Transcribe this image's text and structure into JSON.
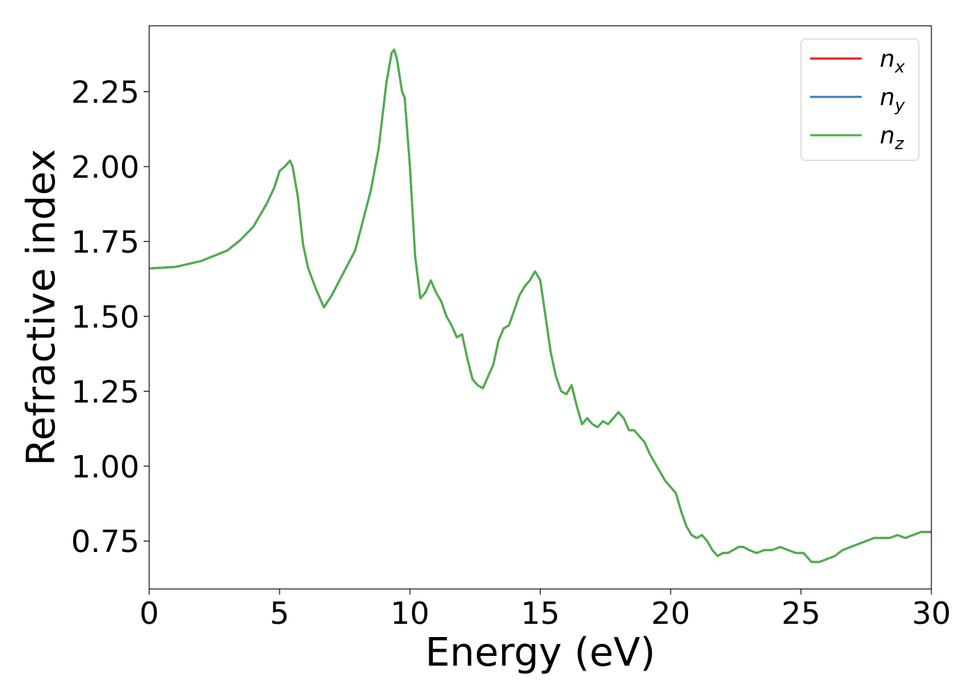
{
  "chart_data": {
    "type": "line",
    "xlabel": "Energy (eV)",
    "ylabel": "Refractive index",
    "xlim": [
      0,
      30
    ],
    "ylim": [
      0.59,
      2.47
    ],
    "xticks": [
      0,
      5,
      10,
      15,
      20,
      25,
      30
    ],
    "yticks": [
      0.75,
      1.0,
      1.25,
      1.5,
      1.75,
      2.0,
      2.25
    ],
    "xtick_labels": [
      "0",
      "5",
      "10",
      "15",
      "20",
      "25",
      "30"
    ],
    "ytick_labels": [
      "0.75",
      "1.00",
      "1.25",
      "1.50",
      "1.75",
      "2.00",
      "2.25"
    ],
    "grid": false,
    "legend_position": "top-right",
    "series": [
      {
        "name": "n_x",
        "label_base": "n",
        "label_sub": "x",
        "color": "#e41a1c",
        "x": [
          0,
          1,
          2,
          3,
          3.5,
          4,
          4.5,
          4.8,
          5.0,
          5.2,
          5.4,
          5.5,
          5.7,
          5.9,
          6.1,
          6.4,
          6.7,
          7.0,
          7.3,
          7.6,
          7.9,
          8.2,
          8.5,
          8.8,
          9.1,
          9.3,
          9.4,
          9.5,
          9.7,
          9.8,
          10.0,
          10.2,
          10.4,
          10.6,
          10.8,
          10.9,
          11.0,
          11.2,
          11.4,
          11.6,
          11.8,
          12.0,
          12.2,
          12.4,
          12.6,
          12.8,
          13.0,
          13.2,
          13.4,
          13.6,
          13.8,
          14.0,
          14.2,
          14.4,
          14.6,
          14.8,
          15.0,
          15.2,
          15.4,
          15.6,
          15.8,
          16.0,
          16.2,
          16.4,
          16.6,
          16.8,
          17.0,
          17.2,
          17.4,
          17.6,
          17.8,
          18.0,
          18.2,
          18.4,
          18.6,
          18.8,
          19.0,
          19.2,
          19.4,
          19.6,
          19.8,
          20.0,
          20.2,
          20.4,
          20.6,
          20.8,
          21.0,
          21.2,
          21.4,
          21.6,
          21.8,
          22.0,
          22.2,
          22.4,
          22.6,
          22.8,
          23.0,
          23.3,
          23.6,
          23.9,
          24.2,
          24.5,
          24.8,
          25.1,
          25.4,
          25.7,
          26.0,
          26.3,
          26.6,
          26.9,
          27.2,
          27.5,
          27.8,
          28.1,
          28.4,
          28.7,
          29.0,
          29.3,
          29.6,
          30.0
        ],
        "values": [
          1.66,
          1.665,
          1.685,
          1.72,
          1.755,
          1.8,
          1.875,
          1.93,
          1.985,
          2.0,
          2.02,
          2.0,
          1.9,
          1.74,
          1.66,
          1.59,
          1.53,
          1.57,
          1.62,
          1.67,
          1.72,
          1.82,
          1.92,
          2.06,
          2.28,
          2.38,
          2.39,
          2.36,
          2.25,
          2.23,
          2.0,
          1.7,
          1.56,
          1.58,
          1.62,
          1.6,
          1.58,
          1.55,
          1.5,
          1.47,
          1.43,
          1.44,
          1.36,
          1.29,
          1.27,
          1.26,
          1.3,
          1.34,
          1.42,
          1.46,
          1.47,
          1.52,
          1.57,
          1.6,
          1.62,
          1.65,
          1.62,
          1.5,
          1.38,
          1.3,
          1.25,
          1.24,
          1.27,
          1.2,
          1.14,
          1.16,
          1.14,
          1.13,
          1.15,
          1.14,
          1.16,
          1.18,
          1.16,
          1.12,
          1.12,
          1.1,
          1.08,
          1.04,
          1.01,
          0.98,
          0.95,
          0.93,
          0.91,
          0.85,
          0.8,
          0.77,
          0.76,
          0.77,
          0.75,
          0.72,
          0.7,
          0.71,
          0.71,
          0.72,
          0.73,
          0.73,
          0.72,
          0.71,
          0.72,
          0.72,
          0.73,
          0.72,
          0.71,
          0.71,
          0.68,
          0.68,
          0.69,
          0.7,
          0.72,
          0.73,
          0.74,
          0.75,
          0.76,
          0.76,
          0.76,
          0.77,
          0.76,
          0.77,
          0.78,
          0.78
        ]
      },
      {
        "name": "n_y",
        "label_base": "n",
        "label_sub": "y",
        "color": "#377eb8",
        "x": [
          0,
          1,
          2,
          3,
          3.5,
          4,
          4.5,
          4.8,
          5.0,
          5.2,
          5.4,
          5.5,
          5.7,
          5.9,
          6.1,
          6.4,
          6.7,
          7.0,
          7.3,
          7.6,
          7.9,
          8.2,
          8.5,
          8.8,
          9.1,
          9.3,
          9.4,
          9.5,
          9.7,
          9.8,
          10.0,
          10.2,
          10.4,
          10.6,
          10.8,
          10.9,
          11.0,
          11.2,
          11.4,
          11.6,
          11.8,
          12.0,
          12.2,
          12.4,
          12.6,
          12.8,
          13.0,
          13.2,
          13.4,
          13.6,
          13.8,
          14.0,
          14.2,
          14.4,
          14.6,
          14.8,
          15.0,
          15.2,
          15.4,
          15.6,
          15.8,
          16.0,
          16.2,
          16.4,
          16.6,
          16.8,
          17.0,
          17.2,
          17.4,
          17.6,
          17.8,
          18.0,
          18.2,
          18.4,
          18.6,
          18.8,
          19.0,
          19.2,
          19.4,
          19.6,
          19.8,
          20.0,
          20.2,
          20.4,
          20.6,
          20.8,
          21.0,
          21.2,
          21.4,
          21.6,
          21.8,
          22.0,
          22.2,
          22.4,
          22.6,
          22.8,
          23.0,
          23.3,
          23.6,
          23.9,
          24.2,
          24.5,
          24.8,
          25.1,
          25.4,
          25.7,
          26.0,
          26.3,
          26.6,
          26.9,
          27.2,
          27.5,
          27.8,
          28.1,
          28.4,
          28.7,
          29.0,
          29.3,
          29.6,
          30.0
        ],
        "values": [
          1.66,
          1.665,
          1.685,
          1.72,
          1.755,
          1.8,
          1.875,
          1.93,
          1.985,
          2.0,
          2.02,
          2.0,
          1.9,
          1.74,
          1.66,
          1.59,
          1.53,
          1.57,
          1.62,
          1.67,
          1.72,
          1.82,
          1.92,
          2.06,
          2.28,
          2.38,
          2.39,
          2.36,
          2.25,
          2.23,
          2.0,
          1.7,
          1.56,
          1.58,
          1.62,
          1.6,
          1.58,
          1.55,
          1.5,
          1.47,
          1.43,
          1.44,
          1.36,
          1.29,
          1.27,
          1.26,
          1.3,
          1.34,
          1.42,
          1.46,
          1.47,
          1.52,
          1.57,
          1.6,
          1.62,
          1.65,
          1.62,
          1.5,
          1.38,
          1.3,
          1.25,
          1.24,
          1.27,
          1.2,
          1.14,
          1.16,
          1.14,
          1.13,
          1.15,
          1.14,
          1.16,
          1.18,
          1.16,
          1.12,
          1.12,
          1.1,
          1.08,
          1.04,
          1.01,
          0.98,
          0.95,
          0.93,
          0.91,
          0.85,
          0.8,
          0.77,
          0.76,
          0.77,
          0.75,
          0.72,
          0.7,
          0.71,
          0.71,
          0.72,
          0.73,
          0.73,
          0.72,
          0.71,
          0.72,
          0.72,
          0.73,
          0.72,
          0.71,
          0.71,
          0.68,
          0.68,
          0.69,
          0.7,
          0.72,
          0.73,
          0.74,
          0.75,
          0.76,
          0.76,
          0.76,
          0.77,
          0.76,
          0.77,
          0.78,
          0.78
        ]
      },
      {
        "name": "n_z",
        "label_base": "n",
        "label_sub": "z",
        "color": "#4daf4a",
        "x": [
          0,
          1,
          2,
          3,
          3.5,
          4,
          4.5,
          4.8,
          5.0,
          5.2,
          5.4,
          5.5,
          5.7,
          5.9,
          6.1,
          6.4,
          6.7,
          7.0,
          7.3,
          7.6,
          7.9,
          8.2,
          8.5,
          8.8,
          9.1,
          9.3,
          9.4,
          9.5,
          9.7,
          9.8,
          10.0,
          10.2,
          10.4,
          10.6,
          10.8,
          10.9,
          11.0,
          11.2,
          11.4,
          11.6,
          11.8,
          12.0,
          12.2,
          12.4,
          12.6,
          12.8,
          13.0,
          13.2,
          13.4,
          13.6,
          13.8,
          14.0,
          14.2,
          14.4,
          14.6,
          14.8,
          15.0,
          15.2,
          15.4,
          15.6,
          15.8,
          16.0,
          16.2,
          16.4,
          16.6,
          16.8,
          17.0,
          17.2,
          17.4,
          17.6,
          17.8,
          18.0,
          18.2,
          18.4,
          18.6,
          18.8,
          19.0,
          19.2,
          19.4,
          19.6,
          19.8,
          20.0,
          20.2,
          20.4,
          20.6,
          20.8,
          21.0,
          21.2,
          21.4,
          21.6,
          21.8,
          22.0,
          22.2,
          22.4,
          22.6,
          22.8,
          23.0,
          23.3,
          23.6,
          23.9,
          24.2,
          24.5,
          24.8,
          25.1,
          25.4,
          25.7,
          26.0,
          26.3,
          26.6,
          26.9,
          27.2,
          27.5,
          27.8,
          28.1,
          28.4,
          28.7,
          29.0,
          29.3,
          29.6,
          30.0
        ],
        "values": [
          1.66,
          1.665,
          1.685,
          1.72,
          1.755,
          1.8,
          1.875,
          1.93,
          1.985,
          2.0,
          2.02,
          2.0,
          1.9,
          1.74,
          1.66,
          1.59,
          1.53,
          1.57,
          1.62,
          1.67,
          1.72,
          1.82,
          1.92,
          2.06,
          2.28,
          2.38,
          2.39,
          2.36,
          2.25,
          2.23,
          2.0,
          1.7,
          1.56,
          1.58,
          1.62,
          1.6,
          1.58,
          1.55,
          1.5,
          1.47,
          1.43,
          1.44,
          1.36,
          1.29,
          1.27,
          1.26,
          1.3,
          1.34,
          1.42,
          1.46,
          1.47,
          1.52,
          1.57,
          1.6,
          1.62,
          1.65,
          1.62,
          1.5,
          1.38,
          1.3,
          1.25,
          1.24,
          1.27,
          1.2,
          1.14,
          1.16,
          1.14,
          1.13,
          1.15,
          1.14,
          1.16,
          1.18,
          1.16,
          1.12,
          1.12,
          1.1,
          1.08,
          1.04,
          1.01,
          0.98,
          0.95,
          0.93,
          0.91,
          0.85,
          0.8,
          0.77,
          0.76,
          0.77,
          0.75,
          0.72,
          0.7,
          0.71,
          0.71,
          0.72,
          0.73,
          0.73,
          0.72,
          0.71,
          0.72,
          0.72,
          0.73,
          0.72,
          0.71,
          0.71,
          0.68,
          0.68,
          0.69,
          0.7,
          0.72,
          0.73,
          0.74,
          0.75,
          0.76,
          0.76,
          0.76,
          0.77,
          0.76,
          0.77,
          0.78,
          0.78
        ]
      }
    ]
  }
}
